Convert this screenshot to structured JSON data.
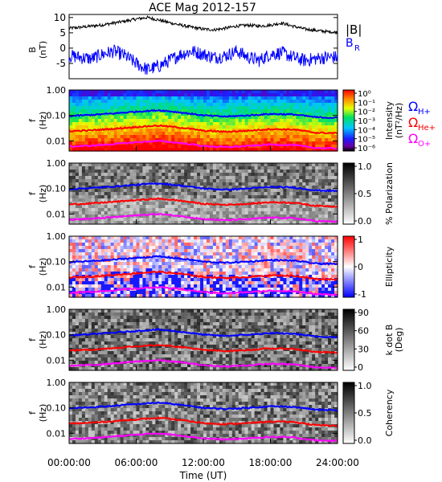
{
  "title": "ACE Mag 2012-157",
  "x_axis": {
    "label": "Time (UT)",
    "ticks": [
      "00:00:00",
      "06:00:00",
      "12:00:00",
      "18:00:00",
      "24:00:00"
    ]
  },
  "legend": {
    "btot": "|B|",
    "br_main": "B",
    "br_sub": "R",
    "omega": "Ω",
    "h_sub": "H+",
    "he_sub": "He+",
    "o_sub": "O+"
  },
  "colors": {
    "btot": "#000000",
    "br": "#0000ff",
    "h_plus": "#0000ff",
    "he_plus": "#ff0000",
    "o_plus": "#ff00ff"
  },
  "panels": [
    {
      "ylabel_main": "B",
      "ylabel_unit": "(nT)",
      "yticks": [
        "10",
        "5",
        "0",
        "-5"
      ]
    },
    {
      "ylabel_main": "f",
      "ylabel_unit": "(Hz)",
      "yticks": [
        "1.00",
        "0.10",
        "0.01"
      ],
      "cbar_label": "Intensity",
      "cbar_unit": "(nT²/Hz)",
      "cbar_ticks": [
        "10⁰",
        "10⁻¹",
        "10⁻²",
        "10⁻³",
        "10⁻⁴",
        "10⁻⁵",
        "10⁻⁶"
      ],
      "colormap": "rainbow"
    },
    {
      "ylabel_main": "f",
      "ylabel_unit": "(Hz)",
      "yticks": [
        "1.00",
        "0.10",
        "0.01"
      ],
      "cbar_label": "% Polarization",
      "cbar_ticks": [
        "1.0",
        "0.5",
        "0.0"
      ],
      "colormap": "gray"
    },
    {
      "ylabel_main": "f",
      "ylabel_unit": "(Hz)",
      "yticks": [
        "1.00",
        "0.10",
        "0.01"
      ],
      "cbar_label": "Ellipticity",
      "cbar_ticks": [
        "1",
        "0",
        "-1"
      ],
      "colormap": "bluewhitered"
    },
    {
      "ylabel_main": "f",
      "ylabel_unit": "(Hz)",
      "yticks": [
        "1.00",
        "0.10",
        "0.01"
      ],
      "cbar_label": "k dot B",
      "cbar_unit": "(Deg)",
      "cbar_ticks": [
        "90",
        "60",
        "30",
        "0"
      ],
      "colormap": "gray"
    },
    {
      "ylabel_main": "f",
      "ylabel_unit": "(Hz)",
      "yticks": [
        "1.00",
        "0.10",
        "0.01"
      ],
      "cbar_label": "Coherency",
      "cbar_ticks": [
        "1.0",
        "0.5",
        "0.0"
      ],
      "colormap": "gray"
    }
  ],
  "chart_data": [
    {
      "type": "line",
      "panel": "magnetic-field",
      "x_unit": "hours UT",
      "xlim": [
        0,
        24
      ],
      "ylim": [
        -10,
        11
      ],
      "series": [
        {
          "name": "|B|",
          "x": [
            0,
            1,
            2,
            3,
            4,
            5,
            6,
            7,
            8,
            9,
            10,
            11,
            12,
            13,
            14,
            15,
            16,
            17,
            18,
            19,
            20,
            21,
            22,
            23,
            24
          ],
          "values": [
            6.5,
            6.8,
            7.2,
            7.6,
            8.2,
            8.8,
            9.5,
            10.0,
            9.2,
            8.3,
            7.5,
            6.8,
            6.2,
            6.0,
            6.5,
            7.2,
            7.5,
            7.2,
            7.5,
            8.2,
            7.2,
            6.3,
            5.8,
            5.4,
            5.2
          ]
        },
        {
          "name": "B_R",
          "x": [
            0,
            1,
            2,
            3,
            4,
            5,
            6,
            7,
            8,
            9,
            10,
            11,
            12,
            13,
            14,
            15,
            16,
            17,
            18,
            19,
            20,
            21,
            22,
            23,
            24
          ],
          "values": [
            -2.5,
            -3.0,
            -3.5,
            -2.0,
            -1.0,
            -2.5,
            -5.0,
            -7.0,
            -6.0,
            -4.0,
            -2.0,
            -1.0,
            -2.0,
            -3.0,
            -2.5,
            -1.0,
            -3.0,
            -4.0,
            -2.0,
            -1.5,
            -3.0,
            -4.0,
            -3.5,
            -3.0,
            -3.0
          ]
        }
      ]
    },
    {
      "type": "line",
      "panel": "ion-gyrofrequencies",
      "x_unit": "hours UT",
      "xlim": [
        0,
        24
      ],
      "ylim": [
        0.004,
        1.0
      ],
      "y_scale": "log",
      "series": [
        {
          "name": "Ω H+",
          "x": [
            0,
            2,
            4,
            6,
            8,
            10,
            12,
            14,
            16,
            18,
            20,
            22,
            24
          ],
          "values": [
            0.095,
            0.105,
            0.12,
            0.14,
            0.16,
            0.13,
            0.1,
            0.09,
            0.1,
            0.115,
            0.11,
            0.085,
            0.08
          ]
        },
        {
          "name": "Ω He+",
          "x": [
            0,
            2,
            4,
            6,
            8,
            10,
            12,
            14,
            16,
            18,
            20,
            22,
            24
          ],
          "values": [
            0.024,
            0.026,
            0.03,
            0.035,
            0.04,
            0.033,
            0.025,
            0.023,
            0.025,
            0.029,
            0.028,
            0.021,
            0.02
          ]
        },
        {
          "name": "Ω O+",
          "x": [
            0,
            2,
            4,
            6,
            8,
            10,
            12,
            14,
            16,
            18,
            20,
            22,
            24
          ],
          "values": [
            0.006,
            0.0065,
            0.0075,
            0.0088,
            0.01,
            0.0082,
            0.0063,
            0.0057,
            0.0063,
            0.0072,
            0.0069,
            0.0053,
            0.005
          ]
        }
      ]
    },
    {
      "type": "heatmap",
      "panel": "intensity",
      "xlim": [
        0,
        24
      ],
      "ylim": [
        0.004,
        1.0
      ],
      "y_scale": "log",
      "zlim": [
        1e-06,
        1
      ],
      "z_scale": "log"
    },
    {
      "type": "heatmap",
      "panel": "polarization",
      "xlim": [
        0,
        24
      ],
      "ylim": [
        0.004,
        1.0
      ],
      "y_scale": "log",
      "zlim": [
        0,
        1
      ]
    },
    {
      "type": "heatmap",
      "panel": "ellipticity",
      "xlim": [
        0,
        24
      ],
      "ylim": [
        0.004,
        1.0
      ],
      "y_scale": "log",
      "zlim": [
        -1,
        1
      ]
    },
    {
      "type": "heatmap",
      "panel": "k-dot-b",
      "xlim": [
        0,
        24
      ],
      "ylim": [
        0.004,
        1.0
      ],
      "y_scale": "log",
      "zlim": [
        0,
        90
      ]
    },
    {
      "type": "heatmap",
      "panel": "coherency",
      "xlim": [
        0,
        24
      ],
      "ylim": [
        0.004,
        1.0
      ],
      "y_scale": "log",
      "zlim": [
        0,
        1
      ]
    }
  ]
}
